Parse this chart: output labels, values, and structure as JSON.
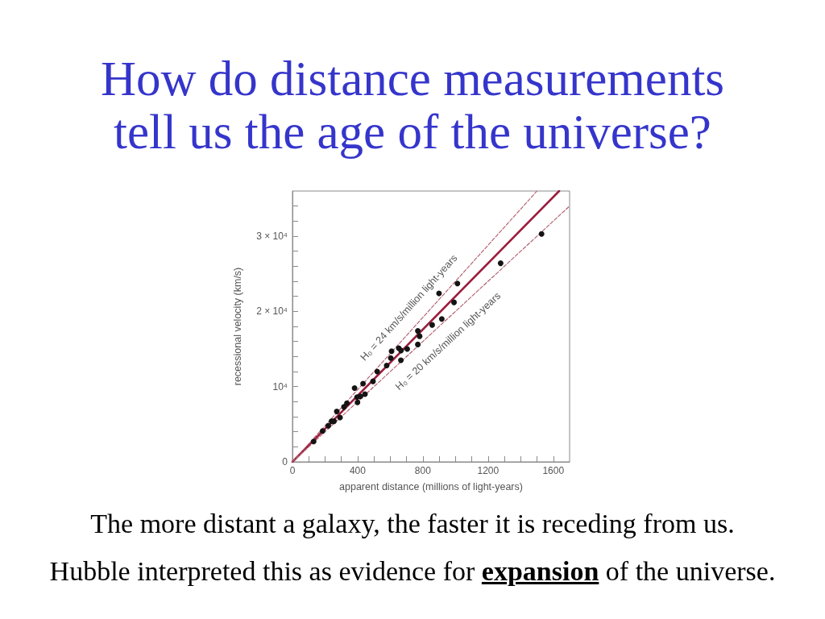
{
  "chart_data": {
    "type": "scatter",
    "title": "How do distance measurements tell us the age of the universe?",
    "xlabel": "apparent distance (millions of light-years)",
    "ylabel": "recessional velocity (km/s)",
    "xlim": [
      0,
      1700
    ],
    "xticks": [
      0,
      {
        "value": 100,
        "label": null
      },
      {
        "value": 200,
        "label": null
      },
      {
        "value": 300,
        "label": null
      },
      400,
      {
        "value": 500,
        "label": null
      },
      {
        "value": 600,
        "label": null
      },
      {
        "value": 700,
        "label": null
      },
      800,
      {
        "value": 900,
        "label": null
      },
      {
        "value": 1000,
        "label": null
      },
      {
        "value": 1100,
        "label": null
      },
      1200,
      {
        "value": 1300,
        "label": null
      },
      {
        "value": 1400,
        "label": null
      },
      {
        "value": 1500,
        "label": null
      },
      1600
    ],
    "ylim": [
      0,
      36000
    ],
    "yticks": [
      0,
      {
        "value": 2000,
        "label": null
      },
      {
        "value": 4000,
        "label": null
      },
      {
        "value": 6000,
        "label": null
      },
      {
        "value": 8000,
        "label": null
      },
      {
        "value": 10000,
        "label": "10⁴"
      },
      {
        "value": 12000,
        "label": null
      },
      {
        "value": 14000,
        "label": null
      },
      {
        "value": 16000,
        "label": null
      },
      {
        "value": 18000,
        "label": null
      },
      {
        "value": 20000,
        "label": "2 × 10⁴"
      },
      {
        "value": 22000,
        "label": null
      },
      {
        "value": 24000,
        "label": null
      },
      {
        "value": 26000,
        "label": null
      },
      {
        "value": 28000,
        "label": null
      },
      {
        "value": 30000,
        "label": "3 × 10⁴"
      },
      {
        "value": 32000,
        "label": null
      },
      {
        "value": 34000,
        "label": null
      }
    ],
    "series": [
      {
        "type": "line",
        "color": "#9b1d3d",
        "marker": "none",
        "line_style": "solid",
        "x": [
          0,
          1636
        ],
        "values": [
          0,
          36000
        ]
      },
      {
        "type": "line",
        "color": "#b05a6a",
        "marker": "none",
        "line_style": "dashed",
        "x": [
          0,
          1500
        ],
        "values": [
          0,
          36000
        ]
      },
      {
        "type": "line",
        "color": "#b05a6a",
        "marker": "none",
        "line_style": "dashed",
        "x": [
          0,
          1700
        ],
        "values": [
          0,
          34000
        ]
      },
      {
        "color": "#141414",
        "marker": "circle",
        "x": [
          130,
          185,
          220,
          240,
          255,
          272,
          292,
          316,
          334,
          381,
          396,
          399,
          417,
          433,
          445,
          494,
          520,
          578,
          603,
          608,
          652,
          666,
          665,
          704,
          769,
          769,
          780,
          857,
          899,
          916,
          991,
          1012,
          1277,
          1528
        ],
        "values": [
          2700,
          4100,
          4800,
          5400,
          5400,
          6700,
          5900,
          7300,
          7800,
          9800,
          8600,
          7900,
          8700,
          10400,
          9000,
          10700,
          12000,
          12800,
          13800,
          14700,
          15100,
          14800,
          13500,
          15000,
          17400,
          15600,
          16700,
          18200,
          22400,
          19000,
          21200,
          23700,
          26400,
          30300
        ]
      }
    ],
    "annotations": [
      {
        "text": "H₀ = 24 km/s/million light-years",
        "x": 791,
        "y": 18984
      },
      {
        "text": "H₀ = 20 km/s/million light-years",
        "x": 884,
        "y": 17680
      },
      "The more distant a galaxy, the faster it is receding from us.",
      "Hubble interpreted this as evidence for",
      "expansion",
      "of the universe."
    ]
  }
}
